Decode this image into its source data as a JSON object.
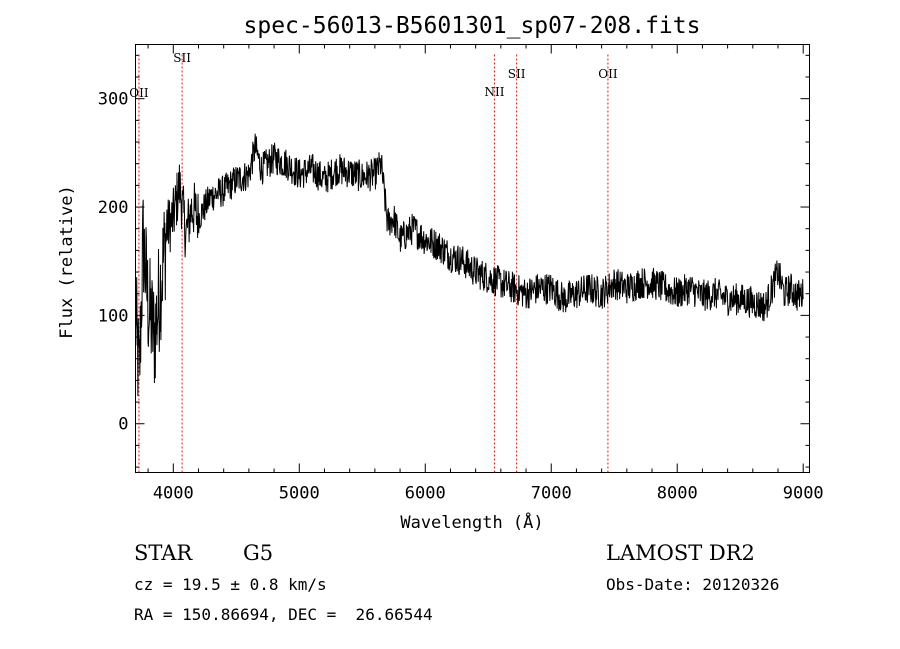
{
  "chart_data": {
    "type": "line",
    "title": "spec-56013-B5601301_sp07-208.fits",
    "xlabel": "Wavelength (Å)",
    "ylabel": "Flux (relative)",
    "xlim": [
      3700,
      9050
    ],
    "ylim": [
      -45,
      350
    ],
    "x_ticks": [
      4000,
      5000,
      6000,
      7000,
      8000,
      9000
    ],
    "y_ticks": [
      0,
      100,
      200,
      300
    ],
    "grid": false,
    "lines": [
      {
        "label": "OII",
        "x": 3727
      },
      {
        "label": "SII",
        "x": 4070
      },
      {
        "label": "NII",
        "x": 6550
      },
      {
        "label": "SII",
        "x": 6725
      },
      {
        "label": "OII",
        "x": 7450
      }
    ],
    "series": [
      {
        "x": [
          3700,
          3730,
          3760,
          3800,
          3850,
          3900,
          3950,
          4000,
          4050,
          4100,
          4150,
          4200,
          4300,
          4400,
          4500,
          4600,
          4650,
          4700,
          4800,
          4900,
          5000,
          5100,
          5200,
          5300,
          5400,
          5500,
          5600,
          5650,
          5700,
          5750,
          5800,
          5900,
          6000,
          6100,
          6200,
          6300,
          6400,
          6500,
          6600,
          6700,
          6800,
          6900,
          7000,
          7100,
          7200,
          7300,
          7400,
          7500,
          7600,
          7700,
          7800,
          7900,
          8000,
          8100,
          8200,
          8300,
          8400,
          8500,
          8600,
          8700,
          8800,
          8850,
          8900,
          8950,
          9000
        ],
        "y": [
          100,
          40,
          170,
          110,
          80,
          130,
          180,
          190,
          220,
          175,
          200,
          190,
          210,
          215,
          225,
          230,
          255,
          235,
          245,
          240,
          230,
          235,
          225,
          235,
          232,
          228,
          230,
          240,
          185,
          190,
          170,
          180,
          170,
          165,
          155,
          150,
          140,
          135,
          130,
          125,
          120,
          125,
          125,
          115,
          120,
          125,
          120,
          130,
          125,
          130,
          130,
          125,
          120,
          125,
          118,
          120,
          115,
          115,
          112,
          108,
          140,
          120,
          125,
          118,
          120
        ]
      }
    ]
  },
  "info": {
    "object_class": "STAR",
    "subclass": "G5",
    "survey": "LAMOST DR2",
    "cz": "cz = 19.5 ± 0.8 km/s",
    "obs_date": "Obs-Date: 20120326",
    "coords": "RA = 150.86694, DEC =  26.66544"
  }
}
